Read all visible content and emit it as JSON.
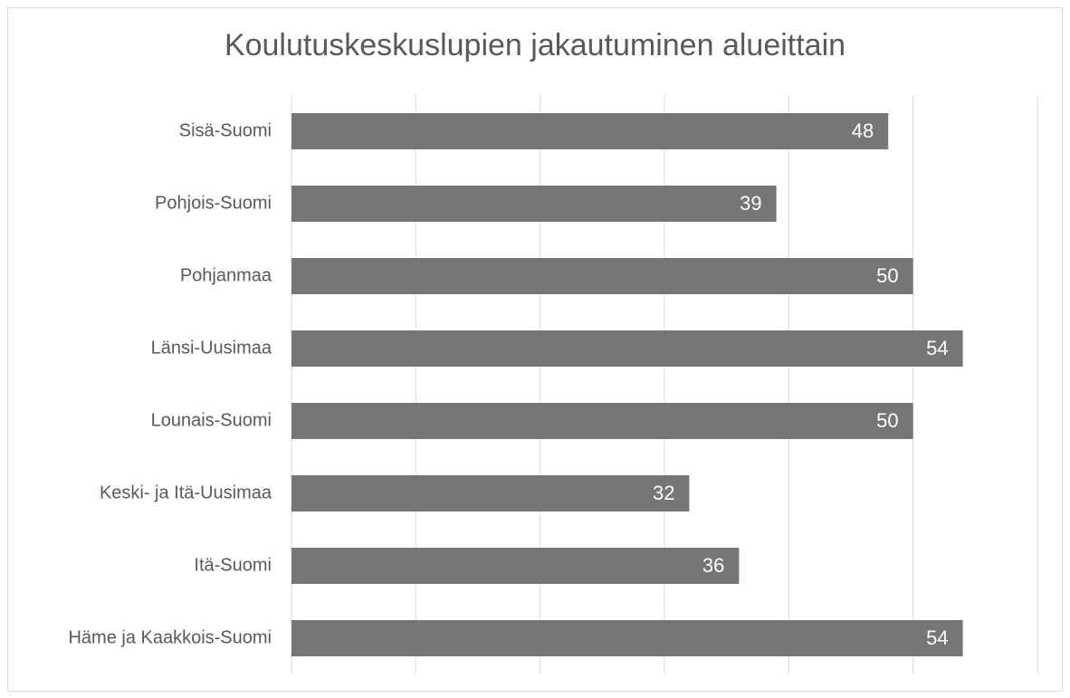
{
  "chart_data": {
    "type": "hbar",
    "title": "Koulutuskeskuslupien jakautuminen alueittain",
    "categories": [
      "Sisä-Suomi",
      "Pohjois-Suomi",
      "Pohjanmaa",
      "Länsi-Uusimaa",
      "Lounais-Suomi",
      "Keski- ja Itä-Uusimaa",
      "Itä-Suomi",
      "Häme ja Kaakkois-Suomi"
    ],
    "values": [
      48,
      39,
      50,
      54,
      50,
      32,
      36,
      54
    ],
    "color": "#767676",
    "xlim": [
      0,
      60
    ],
    "xticks": [
      0,
      10,
      20,
      30,
      40,
      50,
      60
    ],
    "grid": true
  }
}
